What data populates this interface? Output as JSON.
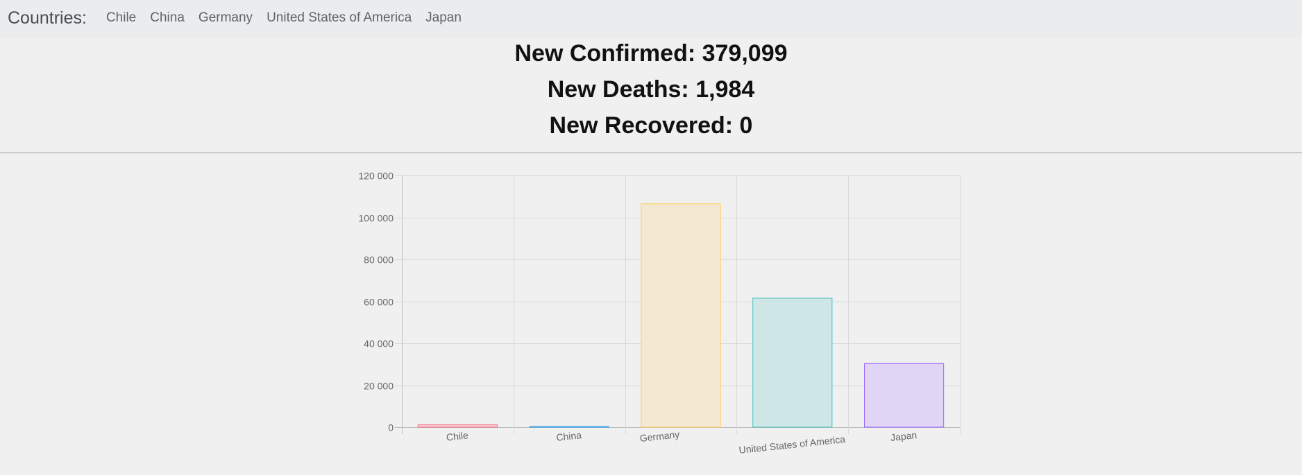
{
  "navbar": {
    "brand": "Countries:",
    "links": [
      "Chile",
      "China",
      "Germany",
      "United States of America",
      "Japan"
    ]
  },
  "stats": {
    "confirmed": "New Confirmed: 379,099",
    "deaths": "New Deaths: 1,984",
    "recovered": "New Recovered: 0"
  },
  "chart_data": {
    "type": "bar",
    "categories": [
      "Chile",
      "China",
      "Germany",
      "United States of America",
      "Japan"
    ],
    "values": [
      1100,
      300,
      106500,
      61500,
      30300
    ],
    "ylim": [
      0,
      120000
    ],
    "yticks": [
      0,
      20000,
      40000,
      60000,
      80000,
      100000,
      120000
    ],
    "ytick_labels": [
      "0",
      "20 000",
      "40 000",
      "60 000",
      "80 000",
      "100 000",
      "120 000"
    ],
    "grid": true,
    "colors": {
      "fill": [
        "#f5d5da",
        "#cfe0ea",
        "#f3e8d2",
        "#cfe6e6",
        "#e0d5f5"
      ],
      "stroke": [
        "#ff6384",
        "#36a2eb",
        "#ffce56",
        "#4bc0c0",
        "#9966ff"
      ]
    }
  }
}
